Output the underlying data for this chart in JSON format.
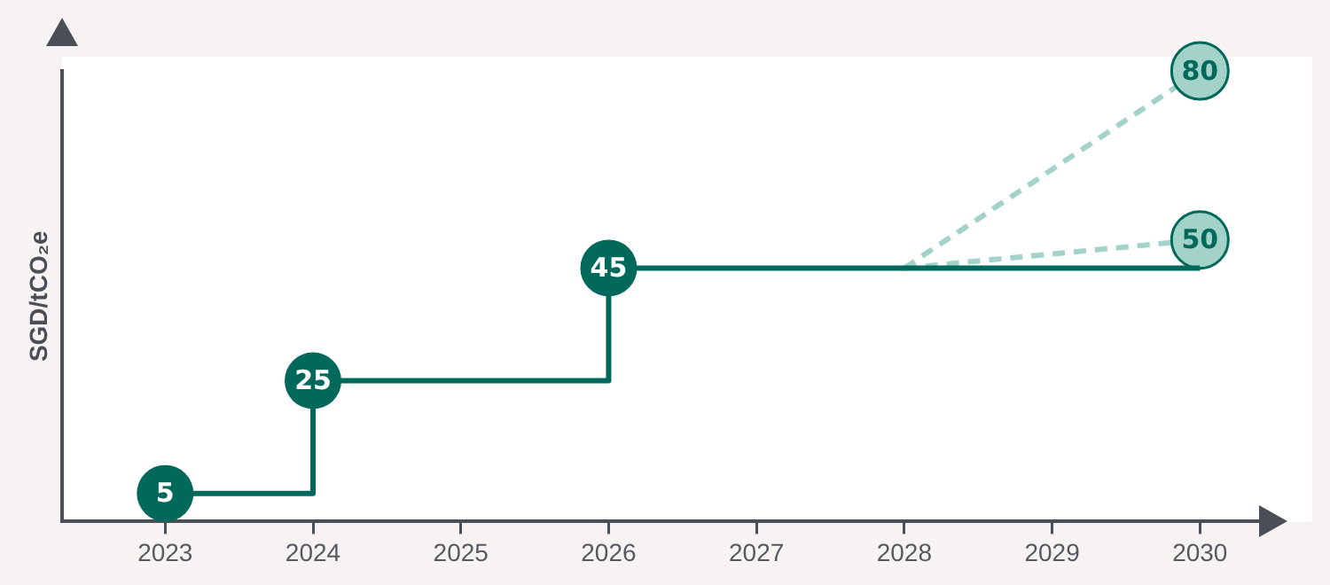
{
  "chart_data": {
    "type": "line",
    "ylabel": "SGD/tCO₂e",
    "xlim": [
      2022.3,
      2030.4
    ],
    "xticks": [
      2023,
      2024,
      2025,
      2026,
      2027,
      2028,
      2029,
      2030
    ],
    "tick_labels": "x",
    "series": [
      {
        "type": "step",
        "color": "#00695c",
        "x": [
          2023,
          2024,
          2026,
          2030
        ],
        "values": [
          5,
          25,
          45,
          45
        ],
        "value_labels": [
          "5",
          "25",
          "45",
          null
        ]
      },
      {
        "type": "line",
        "line_style": "dashed",
        "color": "#a3d3c8",
        "x": [
          2028,
          2030
        ],
        "values": [
          45,
          80
        ],
        "value_labels": [
          null,
          "80"
        ]
      },
      {
        "type": "line",
        "line_style": "dashed",
        "color": "#a3d3c8",
        "x": [
          2028,
          2030
        ],
        "values": [
          45,
          50
        ],
        "value_labels": [
          null,
          "50"
        ]
      }
    ]
  }
}
